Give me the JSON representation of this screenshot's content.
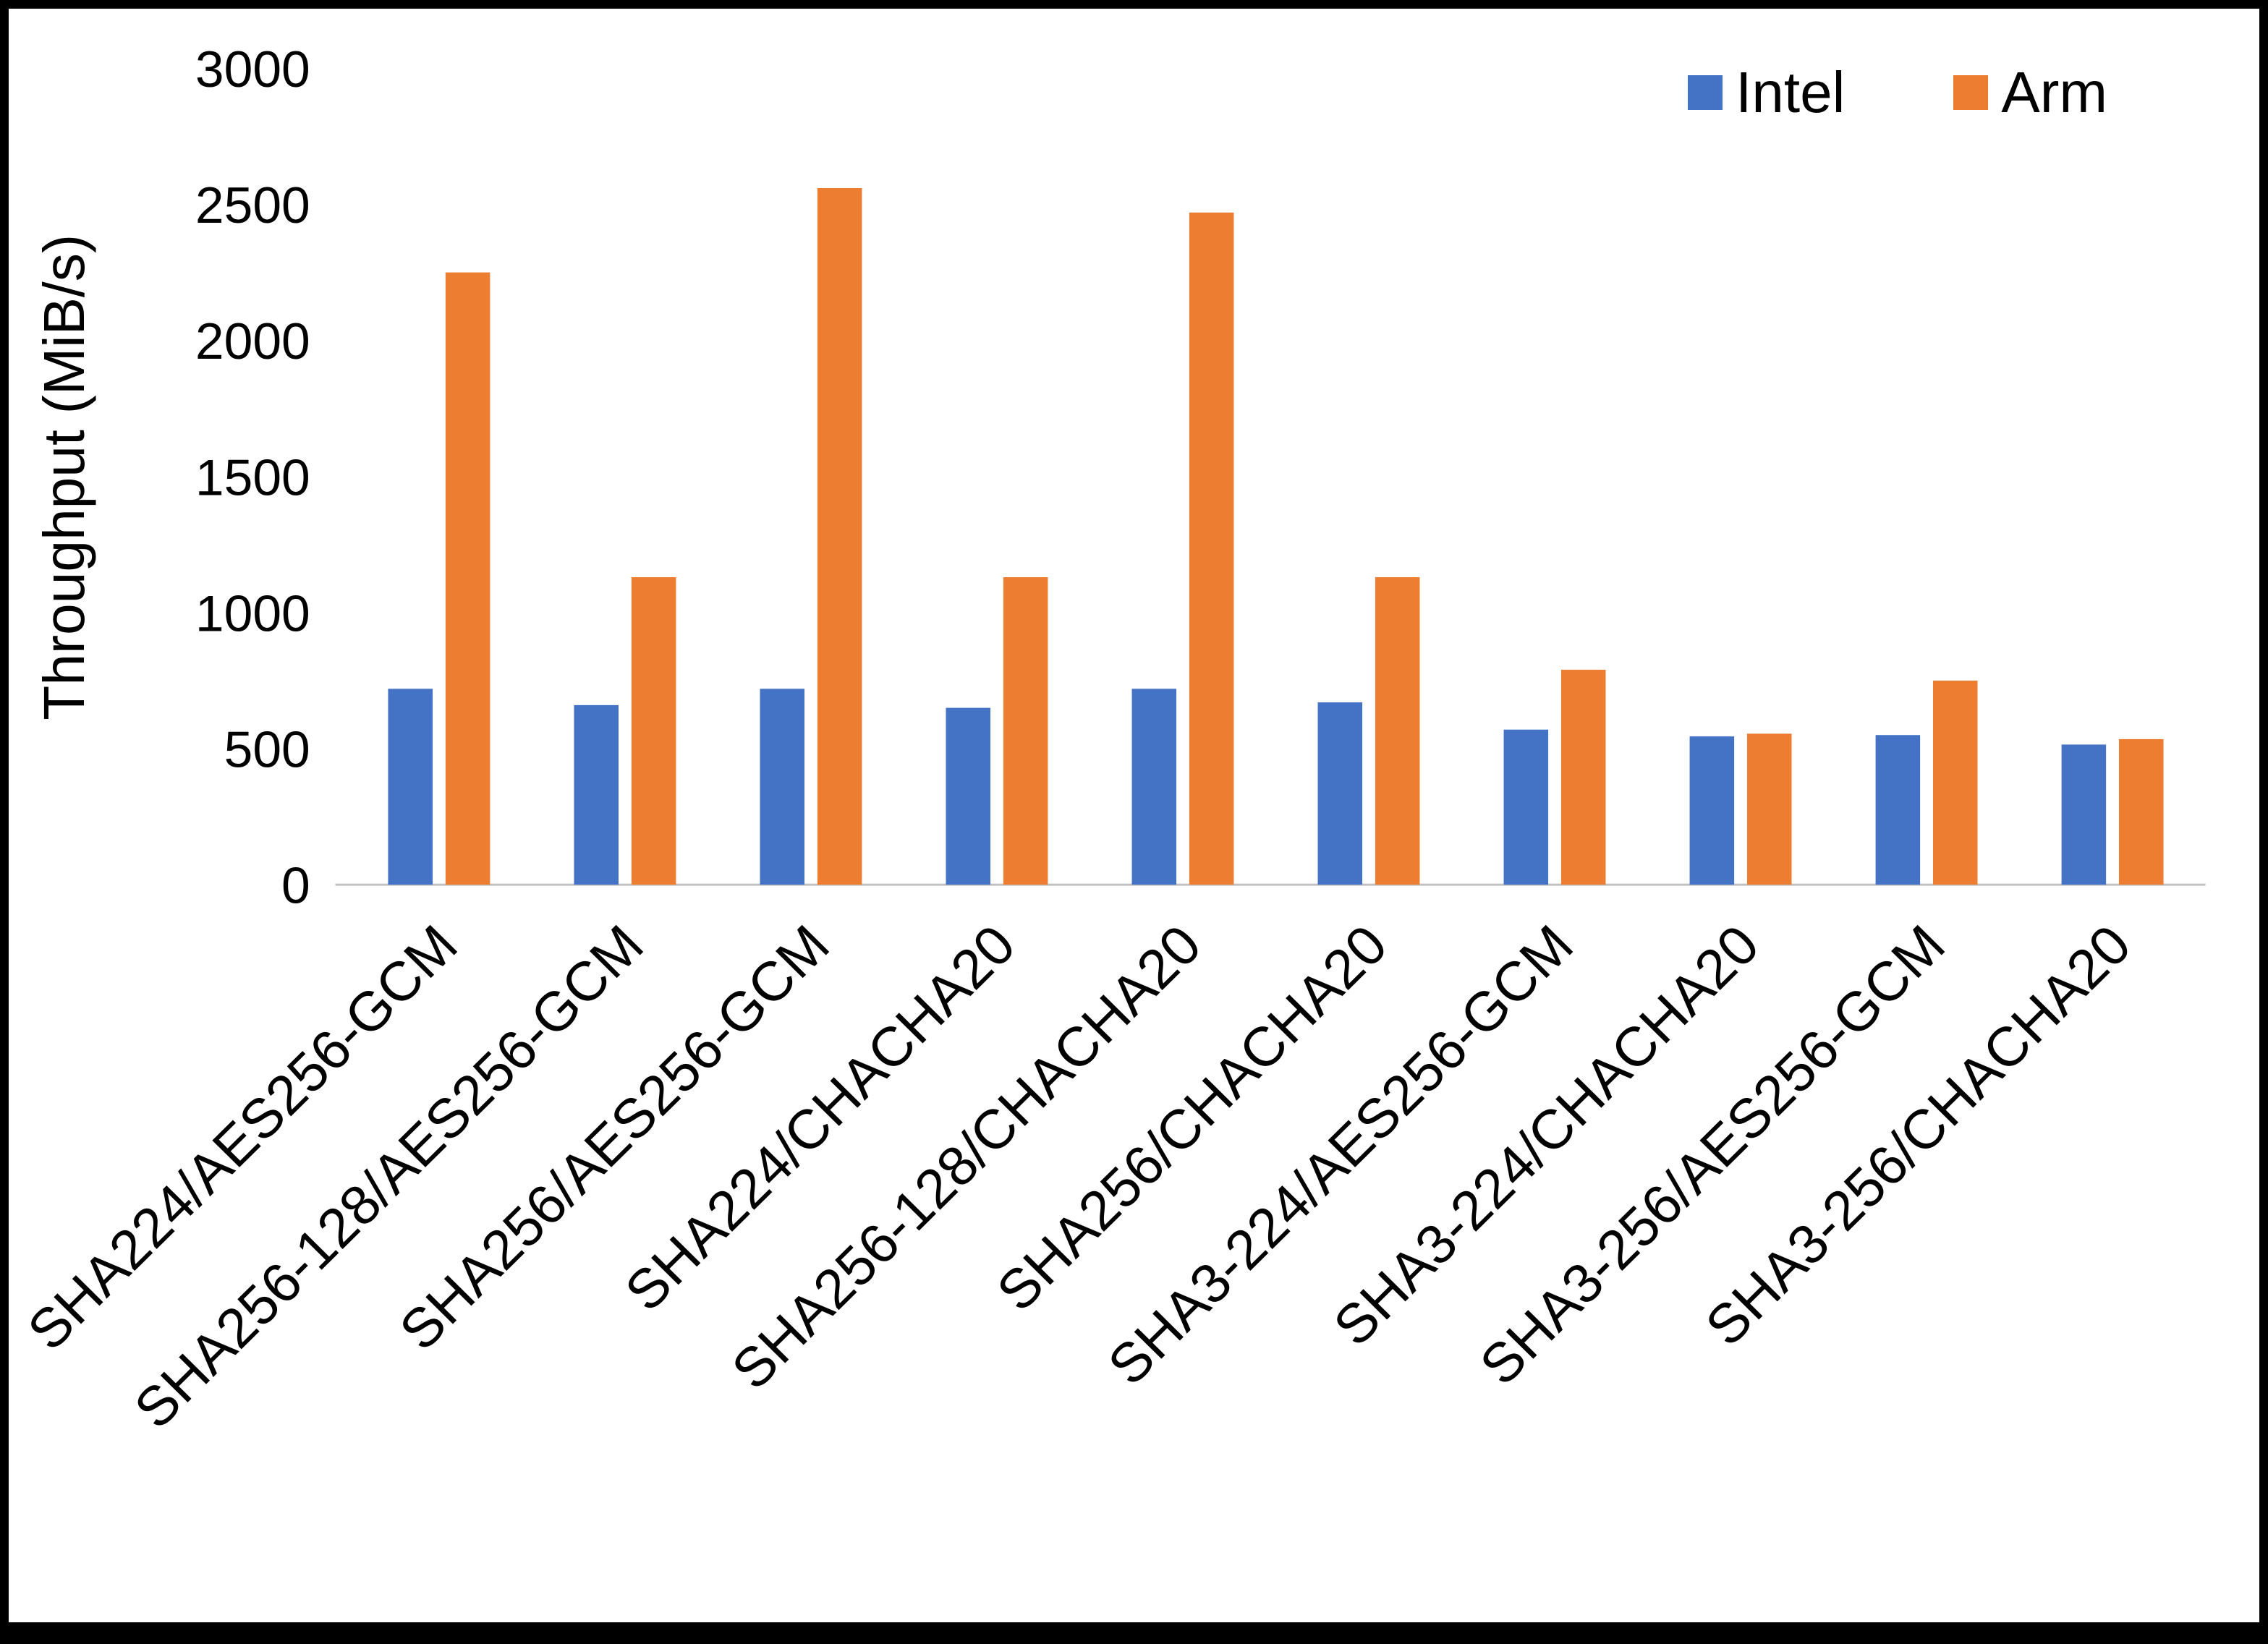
{
  "chart_data": {
    "type": "bar",
    "title": "",
    "ylabel": "Throughput (MiB/s)",
    "xlabel": "",
    "ylim": [
      0,
      3000
    ],
    "yticks": [
      0,
      500,
      1000,
      1500,
      2000,
      2500,
      3000
    ],
    "grid": false,
    "legend_position": "top-right",
    "categories": [
      "SHA224/AES256-GCM",
      "SHA256-128/AES256-GCM",
      "SHA256/AES256-GCM",
      "SHA224/CHACHA20",
      "SHA256-128/CHACHA20",
      "SHA256/CHACHA20",
      "SHA3-224/AES256-GCM",
      "SHA3-224/CHACHA20",
      "SHA3-256/AES256-GCM",
      "SHA3-256/CHACHA20"
    ],
    "series": [
      {
        "name": "Intel",
        "color": "#4472C4",
        "values": [
          720,
          660,
          720,
          650,
          720,
          670,
          570,
          545,
          550,
          515
        ]
      },
      {
        "name": "Arm",
        "color": "#ED7D31",
        "values": [
          2250,
          1130,
          2560,
          1130,
          2470,
          1130,
          790,
          555,
          750,
          535
        ]
      }
    ]
  },
  "axis": {
    "line_color": "#BFBFBF"
  }
}
